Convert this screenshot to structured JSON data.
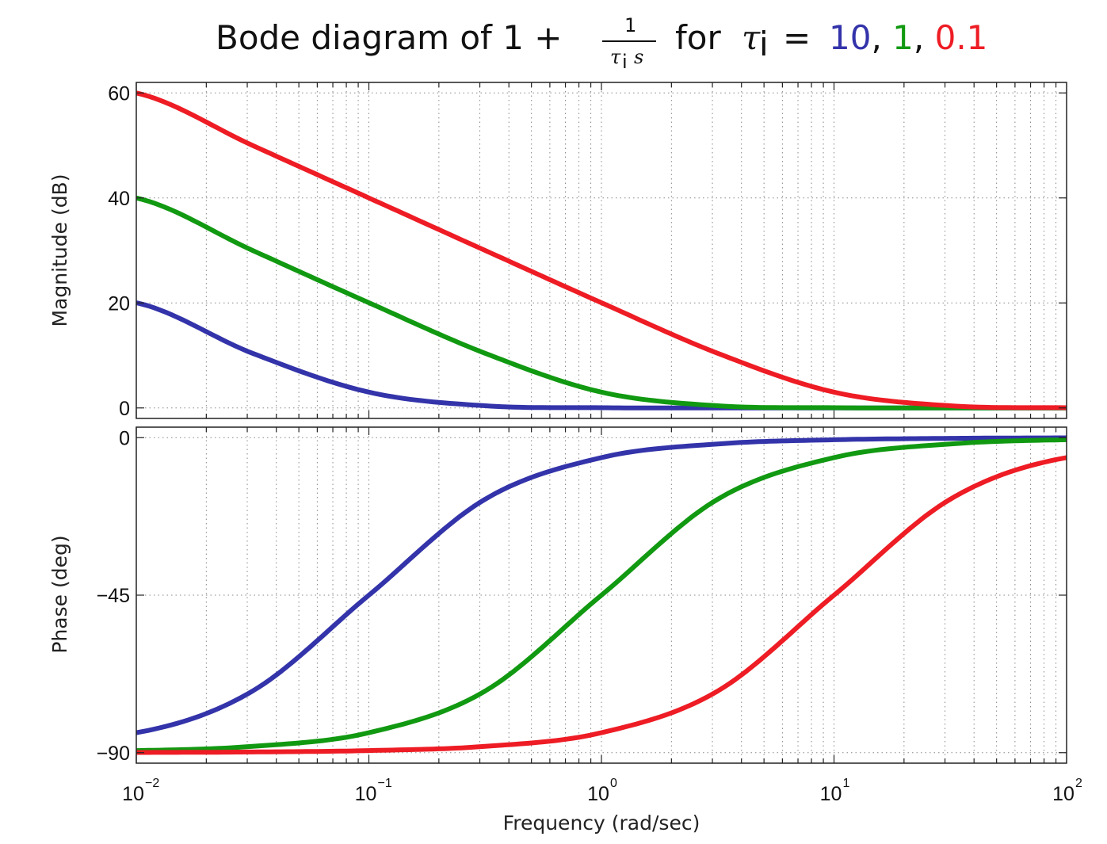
{
  "title": {
    "prefix": "Bode diagram of 1 +",
    "fraction_numerator": "1",
    "fraction_denominator_tau": "τ",
    "fraction_denominator_sub": "i",
    "fraction_denominator_s": "s",
    "middle": "for",
    "tau": "τ",
    "tau_sub": "i",
    "equals": "=",
    "values": [
      {
        "text": "10",
        "color": "#3333aa"
      },
      {
        "text": ", ",
        "color": "#111111"
      },
      {
        "text": "1",
        "color": "#119911"
      },
      {
        "text": ", ",
        "color": "#111111"
      },
      {
        "text": "0.1",
        "color": "#ee1c24"
      }
    ]
  },
  "chart_data": [
    {
      "type": "line",
      "panel": "magnitude",
      "ylabel": "Magnitude (dB)",
      "xlabel": "",
      "x_scale": "log",
      "xlim": [
        0.01,
        100
      ],
      "ylim": [
        -2,
        62
      ],
      "yticks": [
        0,
        20,
        40,
        60
      ],
      "ytick_labels": [
        "0",
        "20",
        "40",
        "60"
      ],
      "grid": true,
      "series": [
        {
          "name": "10",
          "color": "#3333aa",
          "tau_i": 10,
          "x": [
            0.01,
            0.0316,
            0.1,
            0.316,
            1,
            3.16,
            10,
            31.6,
            100
          ],
          "y": [
            20.04,
            10.41,
            3.01,
            0.41,
            0.04,
            0.0,
            0.0,
            0.0,
            0.0
          ]
        },
        {
          "name": "1",
          "color": "#119911",
          "tau_i": 1,
          "x": [
            0.01,
            0.0316,
            0.1,
            0.316,
            1,
            3.16,
            10,
            31.6,
            100
          ],
          "y": [
            40.0,
            30.0,
            20.04,
            10.41,
            3.01,
            0.41,
            0.04,
            0.0,
            0.0
          ]
        },
        {
          "name": "0.1",
          "color": "#ee1c24",
          "tau_i": 0.1,
          "x": [
            0.01,
            0.0316,
            0.1,
            0.316,
            1,
            3.16,
            10,
            31.6,
            100
          ],
          "y": [
            60.0,
            50.0,
            40.0,
            30.0,
            20.04,
            10.41,
            3.01,
            0.41,
            0.04
          ]
        }
      ]
    },
    {
      "type": "line",
      "panel": "phase",
      "ylabel": "Phase (deg)",
      "xlabel": "Frequency (rad/sec)",
      "x_scale": "log",
      "xlim": [
        0.01,
        100
      ],
      "ylim": [
        -93,
        3
      ],
      "yticks": [
        0,
        -45,
        -90
      ],
      "ytick_labels": [
        "0",
        "−45",
        "−90"
      ],
      "xticks": [
        0.01,
        0.1,
        1,
        10,
        100
      ],
      "xtick_labels": [
        {
          "base": "10",
          "exp": "−2"
        },
        {
          "base": "10",
          "exp": "−1"
        },
        {
          "base": "10",
          "exp": "0"
        },
        {
          "base": "10",
          "exp": "1"
        },
        {
          "base": "10",
          "exp": "2"
        }
      ],
      "grid": true,
      "series": [
        {
          "name": "10",
          "color": "#3333aa",
          "tau_i": 10,
          "x": [
            0.01,
            0.0316,
            0.1,
            0.316,
            1,
            3.16,
            10,
            31.6,
            100
          ],
          "y": [
            -84.3,
            -72.4,
            -45.0,
            -17.6,
            -5.7,
            -1.8,
            -0.6,
            -0.2,
            -0.06
          ]
        },
        {
          "name": "1",
          "color": "#119911",
          "tau_i": 1,
          "x": [
            0.01,
            0.0316,
            0.1,
            0.316,
            1,
            3.16,
            10,
            31.6,
            100
          ],
          "y": [
            -89.4,
            -88.2,
            -84.3,
            -72.4,
            -45.0,
            -17.6,
            -5.7,
            -1.8,
            -0.6
          ]
        },
        {
          "name": "0.1",
          "color": "#ee1c24",
          "tau_i": 0.1,
          "x": [
            0.01,
            0.0316,
            0.1,
            0.316,
            1,
            3.16,
            10,
            31.6,
            100
          ],
          "y": [
            -89.94,
            -89.8,
            -89.4,
            -88.2,
            -84.3,
            -72.4,
            -45.0,
            -17.6,
            -5.7
          ]
        }
      ]
    }
  ]
}
